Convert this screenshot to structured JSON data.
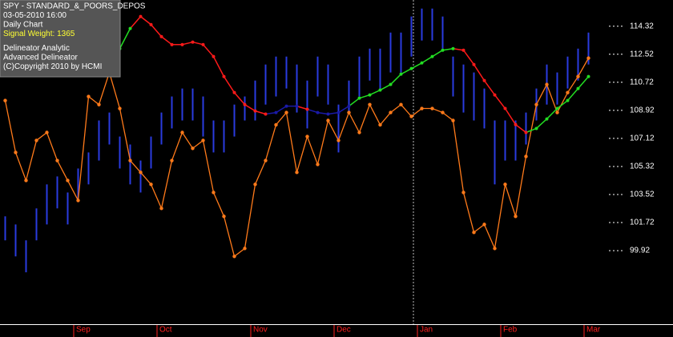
{
  "chart_data": {
    "type": "range-bar",
    "info": [
      {
        "text": "SPY - STANDARD_&_POORS_DEPOS",
        "color": "#ffffff"
      },
      {
        "text": "03-05-2010  16:00",
        "color": "#ffffff"
      },
      {
        "text": "Daily Chart",
        "color": "#ffffff"
      },
      {
        "text": "Signal Weight: 1365",
        "color": "#ffff33"
      },
      {
        "text": "Delineator Analytic",
        "color": "#ffffff"
      },
      {
        "text": "Advanced Delineator",
        "color": "#ffffff"
      },
      {
        "text": "(C)Copyright 2010 by HCMI",
        "color": "#ffffff"
      }
    ],
    "categories": [
      null,
      null,
      null,
      null,
      null,
      null,
      null,
      "Sep",
      null,
      null,
      null,
      null,
      null,
      null,
      null,
      "Oct",
      null,
      null,
      null,
      null,
      null,
      null,
      null,
      null,
      "Nov",
      null,
      null,
      null,
      null,
      null,
      null,
      null,
      "Dec",
      null,
      null,
      null,
      null,
      null,
      null,
      null,
      "Jan",
      null,
      null,
      null,
      null,
      null,
      null,
      null,
      "Feb",
      null,
      null,
      null,
      null,
      null,
      null,
      null,
      "Mar"
    ],
    "high": [
      102.12,
      101.6,
      100.58,
      102.63,
      104.17,
      104.68,
      103.65,
      105.19,
      106.22,
      108.27,
      108.78,
      107.24,
      106.73,
      105.7,
      107.24,
      108.78,
      109.81,
      110.32,
      110.32,
      109.81,
      108.27,
      108.27,
      109.29,
      109.81,
      110.83,
      111.86,
      112.37,
      112.37,
      111.86,
      110.83,
      112.37,
      111.86,
      109.29,
      110.83,
      112.37,
      112.88,
      112.88,
      113.91,
      113.91,
      114.94,
      115.45,
      115.45,
      114.94,
      112.37,
      111.86,
      111.35,
      110.32,
      108.27,
      108.27,
      108.27,
      108.78,
      110.32,
      111.86,
      111.35,
      112.37,
      112.88,
      113.91
    ],
    "low": [
      100.58,
      99.55,
      98.53,
      100.58,
      101.6,
      102.63,
      101.6,
      103.14,
      104.17,
      105.7,
      106.73,
      105.19,
      104.17,
      103.65,
      105.19,
      106.73,
      107.76,
      108.27,
      108.27,
      107.24,
      106.22,
      106.22,
      107.24,
      108.27,
      108.27,
      109.29,
      109.81,
      110.32,
      108.78,
      107.76,
      109.81,
      109.29,
      106.22,
      108.78,
      109.81,
      110.83,
      110.32,
      111.35,
      111.35,
      112.37,
      113.4,
      113.4,
      112.88,
      109.81,
      108.78,
      108.27,
      107.76,
      104.17,
      105.7,
      105.7,
      106.73,
      108.27,
      109.29,
      109.29,
      110.32,
      110.83,
      111.86
    ],
    "bar_color": "#2a3bdf",
    "oscillator": {
      "color": "#ff7a1a",
      "values": [
        109.55,
        106.22,
        104.42,
        106.99,
        107.5,
        105.7,
        104.42,
        103.14,
        109.81,
        109.29,
        111.35,
        109.04,
        105.7,
        104.94,
        104.17,
        102.63,
        105.7,
        107.5,
        106.48,
        106.99,
        103.65,
        102.12,
        99.55,
        100.06,
        104.17,
        105.7,
        107.99,
        108.78,
        104.94,
        107.24,
        105.45,
        108.27,
        106.99,
        108.78,
        107.5,
        109.29,
        107.99,
        108.78,
        109.29,
        108.53,
        109.04,
        109.04,
        108.78,
        108.27,
        103.65,
        101.09,
        101.6,
        100.06,
        104.17,
        102.12,
        105.96,
        109.29,
        110.58,
        108.78,
        110.06,
        111.09,
        112.27
      ]
    },
    "average": {
      "values": [
        null,
        null,
        null,
        null,
        null,
        null,
        null,
        null,
        null,
        null,
        111.62,
        112.88,
        114.17,
        114.94,
        114.42,
        113.65,
        113.14,
        113.14,
        113.3,
        113.14,
        112.37,
        111.09,
        110.06,
        109.29,
        108.88,
        108.68,
        108.78,
        109.19,
        109.19,
        108.99,
        108.78,
        108.68,
        108.78,
        109.19,
        109.7,
        109.91,
        110.22,
        110.58,
        111.24,
        111.6,
        111.96,
        112.37,
        112.78,
        112.88,
        112.78,
        111.86,
        110.83,
        109.91,
        109.04,
        108.01,
        107.5,
        107.76,
        108.37,
        109.04,
        109.55,
        110.32,
        111.09
      ],
      "colors": [
        null,
        null,
        null,
        null,
        null,
        null,
        null,
        null,
        null,
        null,
        "#22dd22",
        "#22dd22",
        "#22dd22",
        "#ff1a1a",
        "#ff1a1a",
        "#ff1a1a",
        "#ff1a1a",
        "#ff1a1a",
        "#ff1a1a",
        "#ff1a1a",
        "#ff1a1a",
        "#ff1a1a",
        "#ff1a1a",
        "#ff1a1a",
        "#ff1a1a",
        "#ff1a1a",
        "#1a1aa8",
        "#1a1aa8",
        "#1a1aa8",
        "#ff1a1a",
        "#1a1aa8",
        "#1a1aa8",
        "#1a1aa8",
        "#1a1aa8",
        "#22dd22",
        "#22dd22",
        "#22dd22",
        "#22dd22",
        "#22dd22",
        "#22dd22",
        "#22dd22",
        "#22dd22",
        "#22dd22",
        "#22dd22",
        "#ff1a1a",
        "#ff1a1a",
        "#ff1a1a",
        "#ff1a1a",
        "#ff1a1a",
        "#ff1a1a",
        "#ff1a1a",
        "#22dd22",
        "#22dd22",
        "#22dd22",
        "#22dd22",
        "#22dd22",
        "#22dd22"
      ]
    },
    "ylim": [
      95.2,
      116.0
    ],
    "yticks": [
      99.92,
      101.72,
      103.52,
      105.32,
      107.12,
      108.92,
      110.72,
      112.52,
      114.32
    ]
  }
}
